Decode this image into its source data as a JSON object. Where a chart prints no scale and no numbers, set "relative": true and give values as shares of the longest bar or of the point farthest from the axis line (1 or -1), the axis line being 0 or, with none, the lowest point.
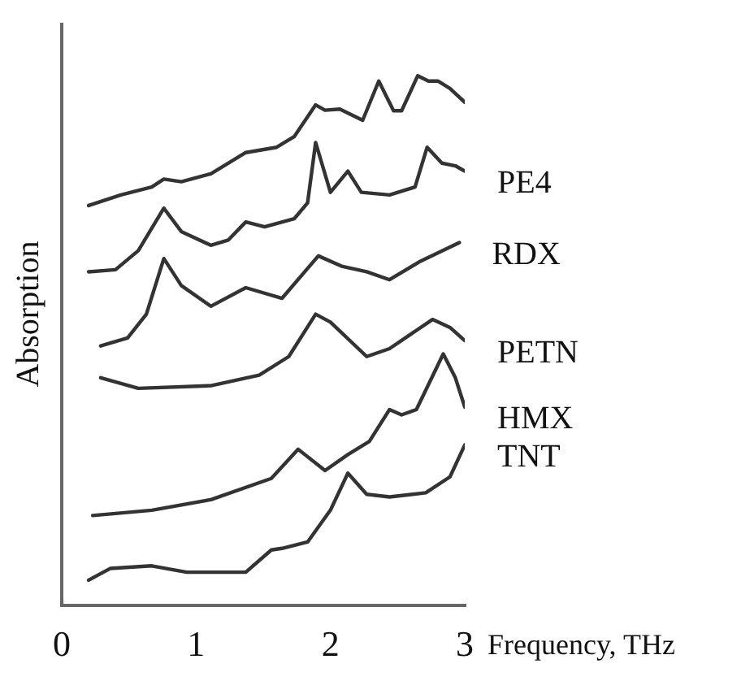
{
  "chart_data": {
    "type": "line",
    "relative": true,
    "xlabel": "Frequency, THz",
    "ylabel": "Absorption",
    "xlim": [
      0,
      3
    ],
    "xticks": [
      0,
      1,
      2,
      3
    ],
    "grid": false,
    "legend": false,
    "marker": "none",
    "line_style": "solid",
    "series": [
      {
        "color": "#333333",
        "x": [
          0.2,
          0.44,
          0.67,
          0.76,
          0.89,
          1.11,
          1.37,
          1.6,
          1.73,
          1.89,
          1.96,
          2.07,
          2.24,
          2.36,
          2.47,
          2.53,
          2.65,
          2.73,
          2.8,
          2.89,
          3.0
        ],
        "values": [
          0.755,
          0.775,
          0.79,
          0.805,
          0.8,
          0.815,
          0.855,
          0.865,
          0.885,
          0.945,
          0.935,
          0.937,
          0.916,
          0.99,
          0.934,
          0.934,
          1.0,
          0.99,
          0.99,
          0.976,
          0.95
        ]
      },
      {
        "name": "PE4",
        "color": "#333333",
        "x": [
          0.2,
          0.4,
          0.57,
          0.76,
          0.89,
          1.11,
          1.24,
          1.37,
          1.51,
          1.73,
          1.83,
          1.89,
          2.0,
          2.13,
          2.23,
          2.44,
          2.63,
          2.72,
          2.83,
          2.93,
          3.0
        ],
        "values": [
          0.63,
          0.634,
          0.67,
          0.75,
          0.706,
          0.68,
          0.69,
          0.724,
          0.715,
          0.73,
          0.76,
          0.874,
          0.78,
          0.82,
          0.78,
          0.775,
          0.79,
          0.865,
          0.835,
          0.83,
          0.82
        ]
      },
      {
        "name": "RDX",
        "color": "#333333",
        "x": [
          0.29,
          0.49,
          0.63,
          0.76,
          0.89,
          1.11,
          1.37,
          1.64,
          1.91,
          2.09,
          2.27,
          2.44,
          2.67,
          2.96
        ],
        "values": [
          0.49,
          0.505,
          0.55,
          0.655,
          0.604,
          0.565,
          0.6,
          0.58,
          0.66,
          0.64,
          0.63,
          0.615,
          0.65,
          0.685
        ]
      },
      {
        "name": "PETN",
        "color": "#333333",
        "x": [
          0.29,
          0.57,
          1.11,
          1.47,
          1.69,
          1.89,
          2.0,
          2.27,
          2.44,
          2.76,
          2.89,
          3.0
        ],
        "values": [
          0.43,
          0.41,
          0.415,
          0.435,
          0.47,
          0.55,
          0.535,
          0.47,
          0.485,
          0.54,
          0.525,
          0.5
        ]
      },
      {
        "name": "HMX",
        "color": "#333333",
        "x": [
          0.23,
          0.67,
          1.11,
          1.56,
          1.76,
          1.96,
          2.13,
          2.29,
          2.44,
          2.53,
          2.64,
          2.84,
          2.93,
          3.0
        ],
        "values": [
          0.17,
          0.18,
          0.2,
          0.24,
          0.295,
          0.255,
          0.285,
          0.31,
          0.37,
          0.36,
          0.37,
          0.475,
          0.43,
          0.375
        ]
      },
      {
        "name": "TNT",
        "color": "#333333",
        "x": [
          0.2,
          0.36,
          0.67,
          0.93,
          1.37,
          1.56,
          1.64,
          1.83,
          2.0,
          2.13,
          2.27,
          2.44,
          2.71,
          2.89,
          3.0
        ],
        "values": [
          0.048,
          0.07,
          0.075,
          0.063,
          0.063,
          0.105,
          0.108,
          0.12,
          0.18,
          0.25,
          0.21,
          0.205,
          0.213,
          0.243,
          0.303
        ]
      }
    ]
  }
}
